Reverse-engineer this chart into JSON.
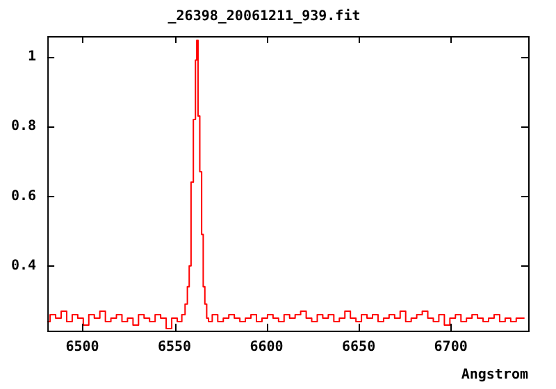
{
  "chart_data": {
    "type": "step",
    "title": "_26398_20061211_939.fit",
    "xlabel": "Angstrom",
    "xlim": [
      6481,
      6742
    ],
    "xticks": [
      6500,
      6550,
      6600,
      6650,
      6700
    ],
    "ylim": [
      0.214,
      1.059
    ],
    "yticks": [
      0.4,
      0.6,
      0.8,
      1
    ],
    "grid": false,
    "legend": false,
    "marker": "none",
    "line_style": "solid",
    "series": [
      {
        "color": "#ff0000",
        "x": [
          6481,
          6484,
          6487,
          6490,
          6493,
          6496,
          6499,
          6502,
          6505,
          6508,
          6511,
          6514,
          6517,
          6520,
          6523,
          6526,
          6529,
          6532,
          6535,
          6538,
          6541,
          6544,
          6547,
          6550,
          6553,
          6555,
          6556.5,
          6557.5,
          6558.5,
          6559.5,
          6561,
          6561.8,
          6562.4,
          6563.2,
          6564.3,
          6565.2,
          6566,
          6567,
          6568,
          6569,
          6572,
          6575,
          6578,
          6581,
          6584,
          6587,
          6590,
          6593,
          6596,
          6599,
          6602,
          6605,
          6608,
          6611,
          6614,
          6617,
          6620,
          6623,
          6626,
          6629,
          6632,
          6635,
          6638,
          6641,
          6644,
          6647,
          6650,
          6653,
          6656,
          6659,
          6662,
          6665,
          6668,
          6671,
          6674,
          6677,
          6680,
          6683,
          6686,
          6689,
          6692,
          6695,
          6698,
          6701,
          6704,
          6707,
          6710,
          6713,
          6716,
          6719,
          6722,
          6725,
          6728,
          6731,
          6734,
          6737,
          6740
        ],
        "values": [
          0.24,
          0.26,
          0.25,
          0.27,
          0.24,
          0.26,
          0.25,
          0.23,
          0.26,
          0.25,
          0.27,
          0.24,
          0.25,
          0.26,
          0.24,
          0.25,
          0.23,
          0.26,
          0.25,
          0.24,
          0.26,
          0.25,
          0.22,
          0.25,
          0.24,
          0.26,
          0.29,
          0.34,
          0.4,
          0.64,
          0.82,
          0.99,
          1.047,
          0.83,
          0.67,
          0.49,
          0.34,
          0.29,
          0.25,
          0.24,
          0.26,
          0.24,
          0.25,
          0.26,
          0.25,
          0.24,
          0.25,
          0.26,
          0.24,
          0.25,
          0.26,
          0.25,
          0.24,
          0.26,
          0.25,
          0.26,
          0.27,
          0.25,
          0.24,
          0.26,
          0.25,
          0.26,
          0.24,
          0.25,
          0.27,
          0.25,
          0.24,
          0.26,
          0.25,
          0.26,
          0.24,
          0.25,
          0.26,
          0.25,
          0.27,
          0.24,
          0.25,
          0.26,
          0.27,
          0.25,
          0.24,
          0.26,
          0.23,
          0.25,
          0.26,
          0.24,
          0.25,
          0.26,
          0.25,
          0.24,
          0.25,
          0.26,
          0.24,
          0.25,
          0.24,
          0.25,
          0.25
        ]
      }
    ]
  }
}
